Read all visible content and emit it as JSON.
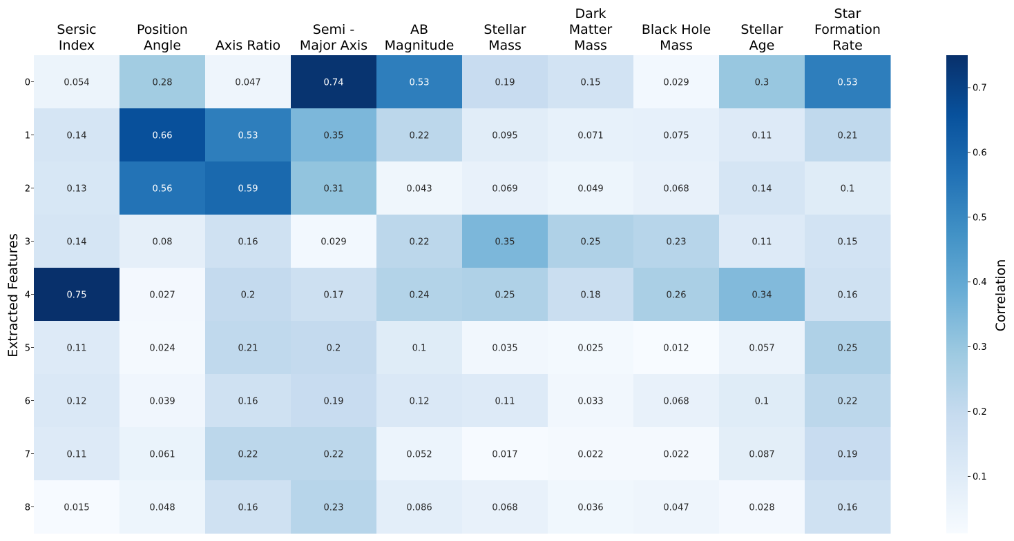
{
  "chart_data": {
    "type": "heatmap",
    "title": "",
    "xlabel": "",
    "ylabel": "Extracted Features",
    "columns": [
      [
        "Sersic",
        "Index"
      ],
      [
        "Position",
        "Angle"
      ],
      [
        "Axis Ratio"
      ],
      [
        "Semi -",
        "Major Axis"
      ],
      [
        "AB",
        "Magnitude"
      ],
      [
        "Stellar",
        "Mass"
      ],
      [
        "Dark",
        "Matter",
        "Mass"
      ],
      [
        "Black Hole",
        "Mass"
      ],
      [
        "Stellar",
        "Age"
      ],
      [
        "Star",
        "Formation",
        "Rate"
      ]
    ],
    "rows": [
      "0",
      "1",
      "2",
      "3",
      "4",
      "5",
      "6",
      "7",
      "8"
    ],
    "values": [
      [
        0.054,
        0.28,
        0.047,
        0.74,
        0.53,
        0.19,
        0.15,
        0.029,
        0.3,
        0.53
      ],
      [
        0.14,
        0.66,
        0.53,
        0.35,
        0.22,
        0.095,
        0.071,
        0.075,
        0.11,
        0.21
      ],
      [
        0.13,
        0.56,
        0.59,
        0.31,
        0.043,
        0.069,
        0.049,
        0.068,
        0.14,
        0.1
      ],
      [
        0.14,
        0.08,
        0.16,
        0.029,
        0.22,
        0.35,
        0.25,
        0.23,
        0.11,
        0.15
      ],
      [
        0.75,
        0.027,
        0.2,
        0.17,
        0.24,
        0.25,
        0.18,
        0.26,
        0.34,
        0.16
      ],
      [
        0.11,
        0.024,
        0.21,
        0.2,
        0.1,
        0.035,
        0.025,
        0.012,
        0.057,
        0.25
      ],
      [
        0.12,
        0.039,
        0.16,
        0.19,
        0.12,
        0.11,
        0.033,
        0.068,
        0.1,
        0.22
      ],
      [
        0.11,
        0.061,
        0.22,
        0.22,
        0.052,
        0.017,
        0.022,
        0.022,
        0.087,
        0.19
      ],
      [
        0.015,
        0.048,
        0.16,
        0.23,
        0.086,
        0.068,
        0.036,
        0.047,
        0.028,
        0.16
      ]
    ],
    "colorbar": {
      "label": "Correlation",
      "range": [
        0.012,
        0.75
      ],
      "ticks": [
        0.1,
        0.2,
        0.3,
        0.4,
        0.5,
        0.6,
        0.7
      ],
      "colormap": "Blues"
    },
    "annotations": true,
    "grid": false
  }
}
